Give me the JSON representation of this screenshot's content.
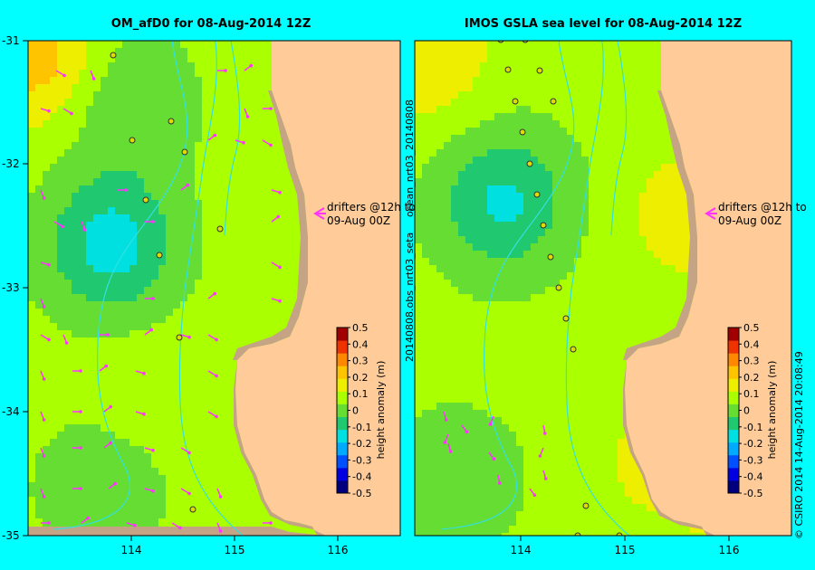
{
  "chart_data": [
    {
      "type": "heatmap",
      "title": "OM_afD0 for 08-Aug-2014 12Z",
      "xlim": [
        113.0,
        116.6
      ],
      "ylim": [
        -35.0,
        -31.0
      ],
      "x_ticks": [
        114,
        115,
        116
      ],
      "y_ticks": [
        -31,
        -32,
        -33,
        -34,
        -35
      ],
      "colorbar": {
        "label": "height anomaly (m)",
        "ticks": [
          0.5,
          0.4,
          0.3,
          0.2,
          0.1,
          0,
          -0.1,
          -0.2,
          -0.3,
          -0.4,
          -0.5
        ]
      },
      "annotation": [
        "drifters @12h to",
        "09-Aug 00Z"
      ],
      "eddies": [
        {
          "lon": 113.8,
          "lat": -32.65,
          "anomaly": -0.2
        },
        {
          "lon": 113.95,
          "lat": -31.5,
          "anomaly": -0.05
        },
        {
          "lon": 113.1,
          "lat": -31.15,
          "anomaly": 0.3
        },
        {
          "lon": 114.1,
          "lat": -33.85,
          "anomaly": 0.12
        },
        {
          "lon": 113.7,
          "lat": -34.6,
          "anomaly": -0.02
        },
        {
          "lon": 115.5,
          "lat": -32.5,
          "anomaly": 0.1
        }
      ]
    },
    {
      "type": "heatmap",
      "title": "IMOS GSLA sea level  for 08-Aug-2014 12Z",
      "xlim": [
        113.0,
        116.6
      ],
      "ylim": [
        -35.0,
        -31.0
      ],
      "x_ticks": [
        114,
        115,
        116
      ],
      "y_ticks": [
        -31,
        -32,
        -33,
        -34,
        -35
      ],
      "colorbar": {
        "label": "height anomaly (m)",
        "ticks": [
          0.5,
          0.4,
          0.3,
          0.2,
          0.1,
          0,
          -0.1,
          -0.2,
          -0.3,
          -0.4,
          -0.5
        ]
      },
      "annotation": [
        "drifters @12h to",
        "09-Aug 00Z"
      ],
      "eddies": [
        {
          "lon": 113.85,
          "lat": -32.3,
          "anomaly": -0.17
        },
        {
          "lon": 113.4,
          "lat": -34.55,
          "anomaly": -0.02
        },
        {
          "lon": 115.65,
          "lat": -32.4,
          "anomaly": 0.22
        },
        {
          "lon": 113.1,
          "lat": -31.1,
          "anomaly": 0.25
        },
        {
          "lon": 115.3,
          "lat": -34.4,
          "anomaly": 0.18
        },
        {
          "lon": 116.2,
          "lat": -34.8,
          "anomaly": 0.18
        }
      ]
    }
  ],
  "side_labels": {
    "dataset": "20140808.obs_nrt03_seta",
    "ocean_file": "ocean_nrt03_20140808",
    "credit": "© CSIRO 2014   14-Aug-2014 20:08:49"
  },
  "colors": {
    "background": "#00ffff",
    "land": "#ffcc99",
    "shelf": "#c4a484",
    "bathymetry": "#33e0e0",
    "drifter_arrow": "#ff33ff"
  },
  "colorscale": [
    "#00007f",
    "#0000e0",
    "#0050ff",
    "#00aaff",
    "#00e0e0",
    "#20c870",
    "#66dd33",
    "#aaff00",
    "#eeee00",
    "#ffc400",
    "#ff8800",
    "#ee3300",
    "#a00000"
  ]
}
